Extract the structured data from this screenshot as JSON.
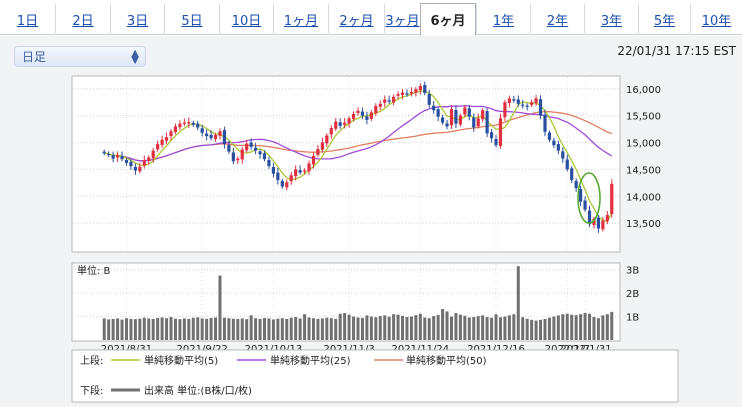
{
  "tabs": [
    {
      "label": "1日",
      "active": false
    },
    {
      "label": "2日",
      "active": false
    },
    {
      "label": "3日",
      "active": false
    },
    {
      "label": "5日",
      "active": false
    },
    {
      "label": "10日",
      "active": false
    },
    {
      "label": "1ヶ月",
      "active": false
    },
    {
      "label": "2ヶ月",
      "active": false
    },
    {
      "label": "3ヶ月",
      "active": false
    },
    {
      "label": "6ヶ月",
      "active": true
    },
    {
      "label": "1年",
      "active": false
    },
    {
      "label": "2年",
      "active": false
    },
    {
      "label": "3年",
      "active": false
    },
    {
      "label": "5年",
      "active": false
    },
    {
      "label": "10年",
      "active": false
    }
  ],
  "selector": {
    "label": "日足"
  },
  "timestamp": "22/01/31 17:15 EST",
  "colors": {
    "up": "#e03040",
    "down": "#2a4fa0",
    "ma5": "#a8c832",
    "ma25": "#a04cd8",
    "ma50": "#e08060",
    "volume": "#707070",
    "highlight": "#55aa33"
  },
  "chart_data": {
    "type": "candlestick",
    "price_axis": {
      "min": 13000,
      "max": 16200,
      "ticks": [
        "16,000",
        "15,500",
        "15,000",
        "14,500",
        "14,000",
        "13,500"
      ],
      "tick_values": [
        16000,
        15500,
        15000,
        14500,
        14000,
        13500
      ]
    },
    "volume_axis": {
      "unit_label": "単位: B",
      "ticks": [
        "3B",
        "2B",
        "1B"
      ],
      "tick_values": [
        3,
        2,
        1
      ],
      "max": 3.2
    },
    "x_labels": [
      "2021/8/31",
      "2021/9/22",
      "2021/10/13",
      "2021/11/3",
      "2021/11/24",
      "2021/12/16",
      "2022/1/7",
      "2022/1/31"
    ],
    "close": [
      14800,
      14780,
      14700,
      14760,
      14690,
      14620,
      14560,
      14480,
      14550,
      14670,
      14720,
      14850,
      14970,
      15050,
      15100,
      15210,
      15300,
      15350,
      15370,
      15380,
      15330,
      15280,
      15180,
      15120,
      15080,
      15140,
      15210,
      14970,
      14830,
      14650,
      14700,
      14870,
      14980,
      14920,
      14850,
      14780,
      14690,
      14560,
      14420,
      14300,
      14180,
      14260,
      14390,
      14500,
      14440,
      14480,
      14610,
      14750,
      14880,
      15000,
      15130,
      15270,
      15390,
      15310,
      15370,
      15450,
      15530,
      15590,
      15500,
      15420,
      15560,
      15680,
      15720,
      15800,
      15760,
      15850,
      15900,
      15930,
      15890,
      15940,
      15990,
      16050,
      15920,
      15700,
      15600,
      15480,
      15370,
      15300,
      15620,
      15350,
      15500,
      15650,
      15480,
      15280,
      15450,
      15600,
      15170,
      15080,
      14950,
      15450,
      15750,
      15820,
      15780,
      15720,
      15700,
      15680,
      15750,
      15820,
      15500,
      15200,
      15050,
      14950,
      14850,
      14700,
      14500,
      14300,
      14150,
      13900,
      13750,
      13480,
      13580,
      13400,
      13550,
      13650,
      14230
    ],
    "volume": [
      0.92,
      0.88,
      0.9,
      0.92,
      0.87,
      0.93,
      0.9,
      0.89,
      0.91,
      0.95,
      0.92,
      0.9,
      0.94,
      0.96,
      0.93,
      0.98,
      0.91,
      0.89,
      0.92,
      0.9,
      0.95,
      0.97,
      0.92,
      0.9,
      0.94,
      0.96,
      2.75,
      0.95,
      0.93,
      0.91,
      0.9,
      0.92,
      0.89,
      1.05,
      0.93,
      0.9,
      0.94,
      0.92,
      0.88,
      0.91,
      0.93,
      0.9,
      0.95,
      0.98,
      0.92,
      1.1,
      0.96,
      0.93,
      0.9,
      0.92,
      0.95,
      0.93,
      0.9,
      1.12,
      1.15,
      1.08,
      1.0,
      0.96,
      0.94,
      1.05,
      1.0,
      0.97,
      1.02,
      1.05,
      0.99,
      1.1,
      1.08,
      1.03,
      0.98,
      1.0,
      1.06,
      1.12,
      0.96,
      0.93,
      1.02,
      1.07,
      1.32,
      1.22,
      1.0,
      1.15,
      1.08,
      1.03,
      0.96,
      0.98,
      1.02,
      1.05,
      0.98,
      0.95,
      1.1,
      0.97,
      1.0,
      1.05,
      1.1,
      3.15,
      0.97,
      0.9,
      0.86,
      0.83,
      0.86,
      0.9,
      0.95,
      1.0,
      1.05,
      1.1,
      1.12,
      1.08,
      1.06,
      1.1,
      1.15,
      1.12,
      0.98,
      0.93,
      1.05,
      1.1,
      1.2
    ]
  },
  "legend": {
    "upper_label": "上段:",
    "lower_label": "下段:",
    "ma5": "単純移動平均(5)",
    "ma25": "単純移動平均(25)",
    "ma50": "単純移動平均(50)",
    "volume": "出来高 単位:(B株/口/枚)"
  }
}
